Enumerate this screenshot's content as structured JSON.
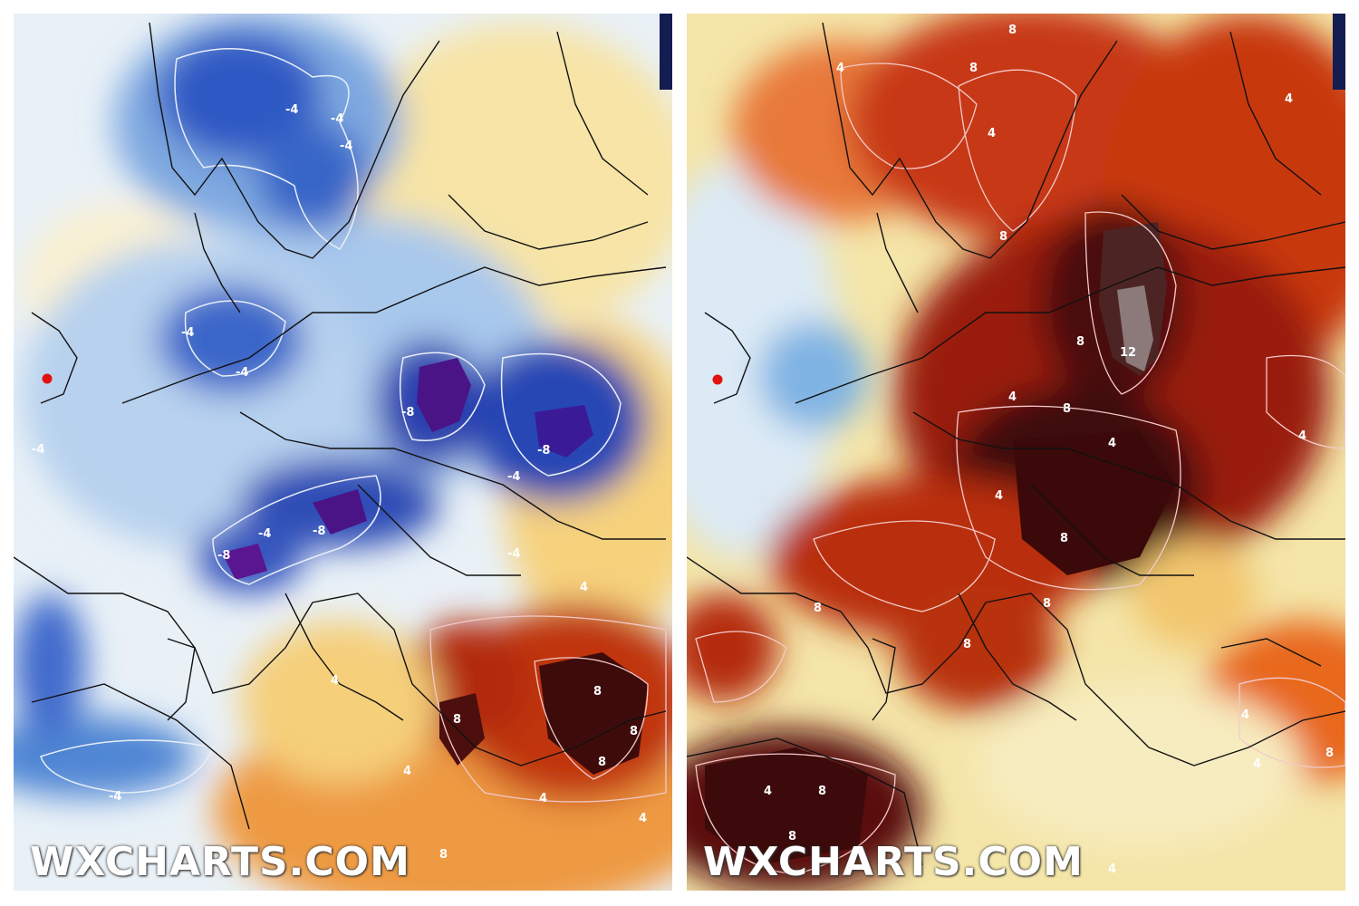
{
  "maps": [
    {
      "id": "left",
      "watermark": "WXCHARTS.COM",
      "contour_labels": [
        "-4",
        "-4",
        "-4",
        "-4",
        "-4",
        "-8",
        "-8",
        "-4",
        "-8",
        "-8",
        "-4",
        "-4",
        "-4",
        "-4",
        "4",
        "4",
        "8",
        "8",
        "8",
        "4",
        "4",
        "8",
        "8",
        "4"
      ]
    },
    {
      "id": "right",
      "watermark": "WXCHARTS.COM",
      "contour_labels": [
        "8",
        "4",
        "8",
        "4",
        "8",
        "4",
        "8",
        "12",
        "8",
        "4",
        "4",
        "8",
        "4",
        "8",
        "8",
        "8",
        "8",
        "8",
        "4",
        "4",
        "4",
        "4",
        "8",
        "4"
      ]
    }
  ],
  "location_marker": {
    "color": "#e0120f"
  },
  "colors": {
    "coldest": "#3d0d72",
    "cold": "#1f3fb5",
    "cool": "#8eb8e6",
    "neutral": "#f3f7f6",
    "warm": "#f3d98a",
    "hot": "#e2571c",
    "hottest": "#3a0c0c"
  }
}
